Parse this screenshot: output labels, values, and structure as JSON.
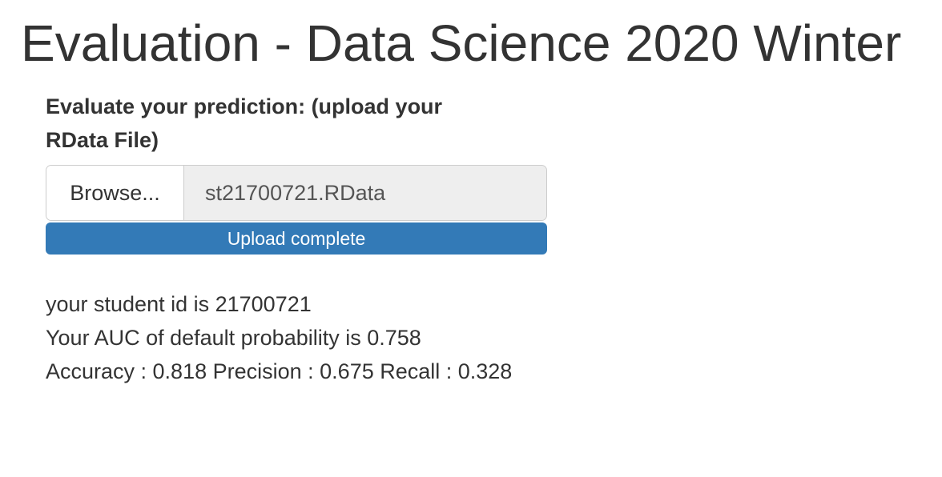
{
  "page": {
    "title": "Evaluation - Data Science 2020 Winter"
  },
  "upload": {
    "label": "Evaluate your prediction: (upload your RData File)",
    "browse_label": "Browse...",
    "file_name": "st21700721.RData",
    "progress_text": "Upload complete",
    "progress_percent": 100
  },
  "results": {
    "student_id_line": "your student id is 21700721",
    "auc_line": "Your AUC of default probability is 0.758",
    "metrics_line": "Accuracy : 0.818 Precision : 0.675 Recall : 0.328"
  },
  "colors": {
    "progress_bar": "#337ab7",
    "text": "#333333",
    "file_field_bg": "#eeeeee"
  }
}
